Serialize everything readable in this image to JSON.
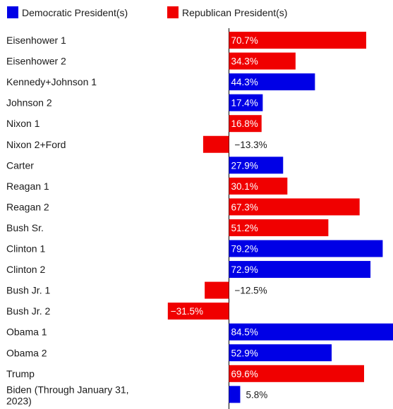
{
  "chart_data": {
    "type": "bar",
    "orientation": "horizontal",
    "title": "",
    "xlabel": "",
    "ylabel": "",
    "legend": {
      "placement": "top-left",
      "items": [
        {
          "key": "D",
          "label": "Democratic President(s)",
          "color": "#0000e6"
        },
        {
          "key": "R",
          "label": "Republican President(s)",
          "color": "#f00000"
        }
      ]
    },
    "categories": [
      "Eisenhower 1",
      "Eisenhower 2",
      "Kennedy+Johnson 1",
      "Johnson 2",
      "Nixon 1",
      "Nixon 2+Ford",
      "Carter",
      "Reagan 1",
      "Reagan 2",
      "Bush Sr.",
      "Clinton 1",
      "Clinton 2",
      "Bush Jr. 1",
      "Bush Jr. 2",
      "Obama 1",
      "Obama 2",
      "Trump",
      "Biden (Through January 31, 2023)"
    ],
    "label_lines": [
      [
        "Eisenhower 1"
      ],
      [
        "Eisenhower 2"
      ],
      [
        "Kennedy+Johnson 1"
      ],
      [
        "Johnson 2"
      ],
      [
        "Nixon 1"
      ],
      [
        "Nixon 2+Ford"
      ],
      [
        "Carter"
      ],
      [
        "Reagan 1"
      ],
      [
        "Reagan 2"
      ],
      [
        "Bush Sr."
      ],
      [
        "Clinton 1"
      ],
      [
        "Clinton 2"
      ],
      [
        "Bush Jr. 1"
      ],
      [
        "Bush Jr. 2"
      ],
      [
        "Obama 1"
      ],
      [
        "Obama 2"
      ],
      [
        "Trump"
      ],
      [
        "Biden (Through January 31,",
        "2023)"
      ]
    ],
    "values": [
      70.7,
      34.3,
      44.3,
      17.4,
      16.8,
      -13.3,
      27.9,
      30.1,
      67.3,
      51.2,
      79.2,
      72.9,
      -12.5,
      -31.5,
      84.5,
      52.9,
      69.6,
      5.8
    ],
    "value_labels": [
      "70.7%",
      "34.3%",
      "44.3%",
      "17.4%",
      "16.8%",
      "−13.3%",
      "27.9%",
      "30.1%",
      "67.3%",
      "51.2%",
      "79.2%",
      "72.9%",
      "−12.5%",
      "−31.5%",
      "84.5%",
      "52.9%",
      "69.6%",
      "5.8%"
    ],
    "party": [
      "R",
      "R",
      "D",
      "D",
      "R",
      "R",
      "D",
      "R",
      "R",
      "R",
      "D",
      "D",
      "R",
      "R",
      "D",
      "D",
      "R",
      "D"
    ],
    "unit": "%",
    "xlim": [
      -31.5,
      84.5
    ],
    "grid": false
  }
}
